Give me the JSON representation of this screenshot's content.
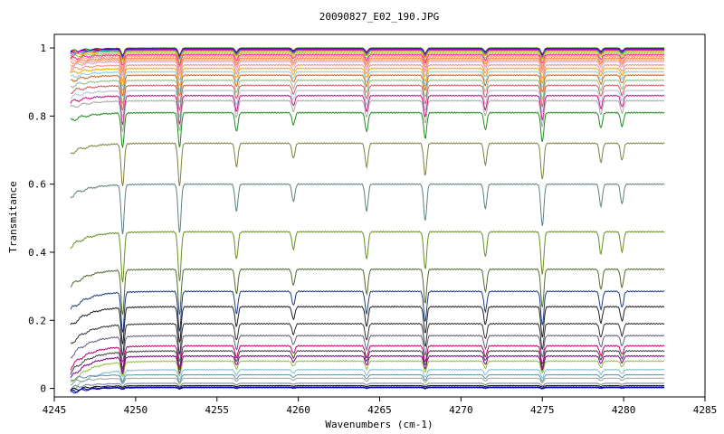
{
  "chart_data": {
    "type": "line",
    "title": "20090827_E02_190.JPG",
    "xlabel": "Wavenumbers (cm-1)",
    "ylabel": "Transmitance",
    "xlim": [
      4245,
      4285
    ],
    "ylim": [
      -0.025,
      1.04
    ],
    "x_ticks": [
      4245,
      4250,
      4255,
      4260,
      4265,
      4270,
      4275,
      4280,
      4285
    ],
    "y_ticks": [
      0,
      0.2,
      0.4,
      0.6,
      0.8,
      1
    ],
    "x_tick_labels": [
      "4245",
      "4250",
      "4255",
      "4260",
      "4265",
      "4270",
      "4275",
      "4280",
      "4285"
    ],
    "y_tick_labels": [
      "0",
      "0.2",
      "0.4",
      "0.6",
      "0.8",
      "1"
    ],
    "x_range": [
      4246,
      4282.5
    ],
    "grid": false,
    "legend": "none",
    "absorption_lines_x": [
      4249.2,
      4252.7,
      4256.2,
      4259.7,
      4264.2,
      4267.8,
      4271.5,
      4275.0,
      4278.6,
      4279.9
    ],
    "absorption_lines_strength": [
      1.0,
      1.0,
      0.55,
      0.35,
      0.55,
      0.75,
      0.5,
      0.85,
      0.45,
      0.4
    ],
    "series": [
      {
        "baseline": 1.0,
        "color": "#006400"
      },
      {
        "baseline": 0.998,
        "color": "#ff0000"
      },
      {
        "baseline": 0.997,
        "color": "#0000cd"
      },
      {
        "baseline": 0.995,
        "color": "#ff00ff"
      },
      {
        "baseline": 0.993,
        "color": "#00a0a0"
      },
      {
        "baseline": 0.99,
        "color": "#ff8c00"
      },
      {
        "baseline": 0.985,
        "color": "#9acd32"
      },
      {
        "baseline": 0.98,
        "color": "#ff1493"
      },
      {
        "baseline": 0.975,
        "color": "#ffa07a"
      },
      {
        "baseline": 0.97,
        "color": "#ff7f50"
      },
      {
        "baseline": 0.965,
        "color": "#f4a460"
      },
      {
        "baseline": 0.96,
        "color": "#dda0dd"
      },
      {
        "baseline": 0.95,
        "color": "#e9967a"
      },
      {
        "baseline": 0.94,
        "color": "#ffa500"
      },
      {
        "baseline": 0.93,
        "color": "#87ceeb"
      },
      {
        "baseline": 0.92,
        "color": "#d2691e"
      },
      {
        "baseline": 0.905,
        "color": "#8fbc8f"
      },
      {
        "baseline": 0.89,
        "color": "#cd5c5c"
      },
      {
        "baseline": 0.875,
        "color": "#b0c4de"
      },
      {
        "baseline": 0.86,
        "color": "#c71585"
      },
      {
        "baseline": 0.845,
        "color": "#a9a9a9"
      },
      {
        "baseline": 0.81,
        "color": "#228b22"
      },
      {
        "baseline": 0.72,
        "color": "#808040"
      },
      {
        "baseline": 0.6,
        "color": "#5f8080"
      },
      {
        "baseline": 0.46,
        "color": "#6b8e23"
      },
      {
        "baseline": 0.35,
        "color": "#556b2f"
      },
      {
        "baseline": 0.285,
        "color": "#1e3c80"
      },
      {
        "baseline": 0.24,
        "color": "#202020"
      },
      {
        "baseline": 0.19,
        "color": "#303030"
      },
      {
        "baseline": 0.155,
        "color": "#606080"
      },
      {
        "baseline": 0.125,
        "color": "#c0007a"
      },
      {
        "baseline": 0.11,
        "color": "#404040"
      },
      {
        "baseline": 0.095,
        "color": "#800080"
      },
      {
        "baseline": 0.08,
        "color": "#90c040"
      },
      {
        "baseline": 0.055,
        "color": "#80c0d0"
      },
      {
        "baseline": 0.04,
        "color": "#5b8fa0"
      },
      {
        "baseline": 0.03,
        "color": "#a0a0a0"
      },
      {
        "baseline": 0.015,
        "color": "#708090"
      },
      {
        "baseline": 0.008,
        "color": "#000000"
      },
      {
        "baseline": 0.004,
        "color": "#00008b"
      },
      {
        "baseline": 0.002,
        "color": "#0000cd"
      }
    ]
  }
}
